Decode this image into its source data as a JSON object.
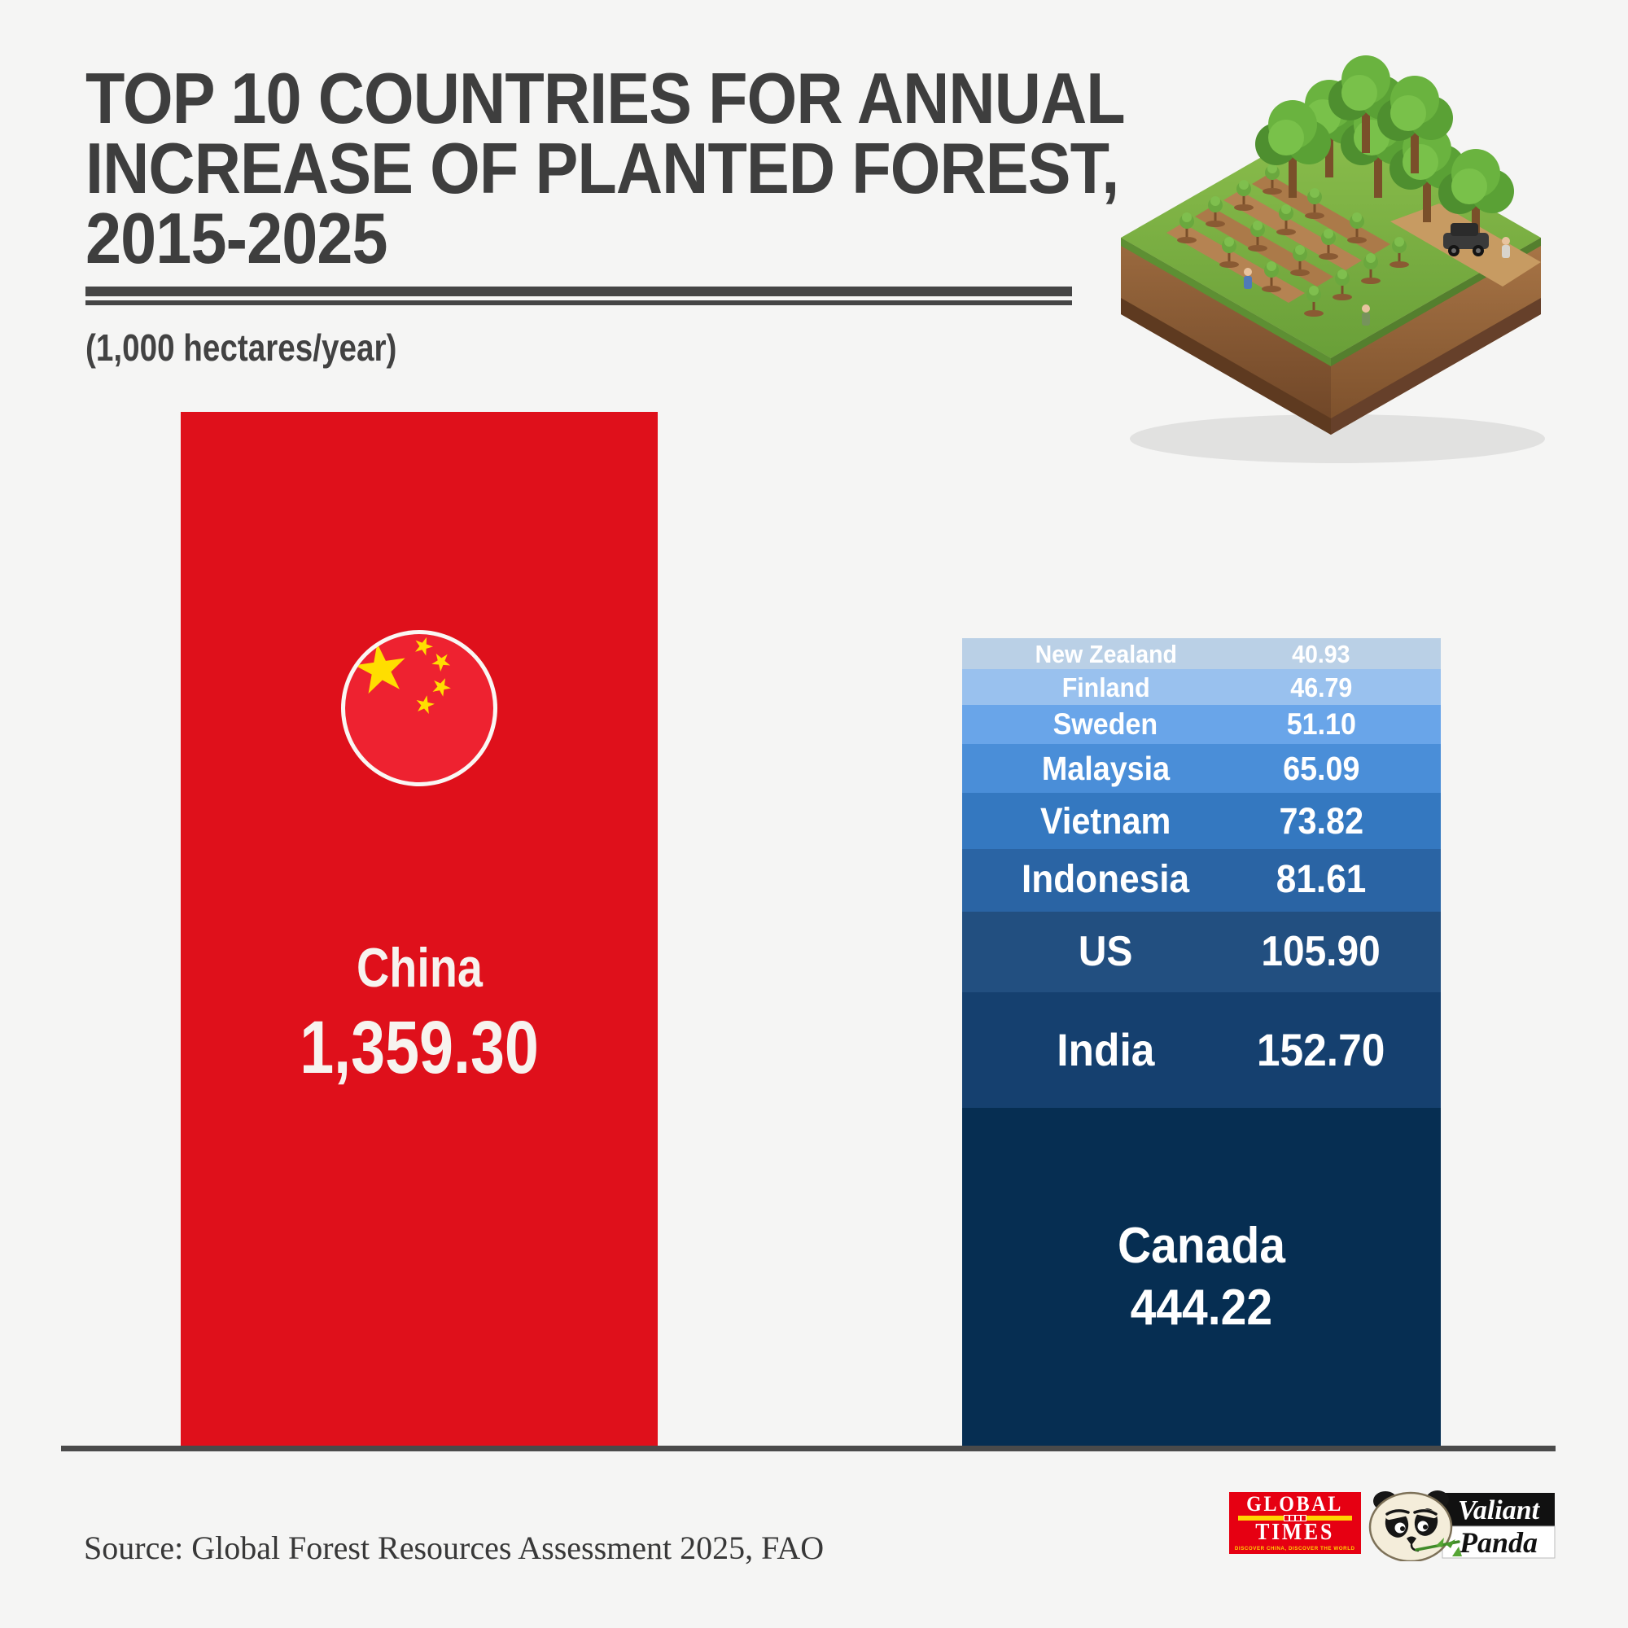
{
  "title": {
    "line1": "TOP 10 COUNTRIES FOR ANNUAL",
    "line2": "INCREASE OF PLANTED FOREST,",
    "line3": "2015-2025"
  },
  "subtitle": "(1,000 hectares/year)",
  "source": "Source: Global Forest Resources Assessment 2025, FAO",
  "colors": {
    "background": "#f5f5f4",
    "title_text": "#3e3e3e",
    "baseline": "#4a4a4a",
    "china_bar_red": "#df101b",
    "flag_red": "#ee2230",
    "flag_star_yellow": "#ffde00",
    "gt_red": "#e60012",
    "gt_yellow": "#ffd500"
  },
  "chart_data": {
    "type": "bar",
    "title": "Top 10 countries for annual increase of planted forest, 2015-2025",
    "unit_label": "(1,000 hectares/year)",
    "ylabel": "1,000 hectares/year",
    "grid": false,
    "legend": "none",
    "layout_hint": "single red bar for China beside one stacked column for the other nine countries; stack ordered smallest value at top to largest at bottom; all segment heights proportional to value",
    "categories": [
      "China",
      "Canada",
      "India",
      "US",
      "Indonesia",
      "Vietnam",
      "Malaysia",
      "Sweden",
      "Finland",
      "New Zealand"
    ],
    "values": [
      1359.3,
      444.22,
      152.7,
      105.9,
      81.61,
      73.82,
      65.09,
      51.1,
      46.79,
      40.93
    ],
    "china": {
      "label": "China",
      "value": 1359.3,
      "display": "1,359.30",
      "color": "#df101b"
    },
    "stack": [
      {
        "label": "New Zealand",
        "value": 40.93,
        "display": "40.93",
        "color": "#bad0e6"
      },
      {
        "label": "Finland",
        "value": 46.79,
        "display": "46.79",
        "color": "#99c1ee"
      },
      {
        "label": "Sweden",
        "value": 51.1,
        "display": "51.10",
        "color": "#69a5e9"
      },
      {
        "label": "Malaysia",
        "value": 65.09,
        "display": "65.09",
        "color": "#4a8ed8"
      },
      {
        "label": "Vietnam",
        "value": 73.82,
        "display": "73.82",
        "color": "#3478c0"
      },
      {
        "label": "Indonesia",
        "value": 81.61,
        "display": "81.61",
        "color": "#2a64a4"
      },
      {
        "label": "US",
        "value": 105.9,
        "display": "105.90",
        "color": "#224f80"
      },
      {
        "label": "India",
        "value": 152.7,
        "display": "152.70",
        "color": "#15406f"
      },
      {
        "label": "Canada",
        "value": 444.22,
        "display": "444.22",
        "color": "#062e52"
      }
    ]
  },
  "logos": {
    "global_times": {
      "word1": "GLOBAL",
      "word2": "TIMES",
      "tagline": "DISCOVER CHINA, DISCOVER THE WORLD"
    },
    "valiant_panda": {
      "word1": "Valiant",
      "word2": "Panda"
    }
  }
}
